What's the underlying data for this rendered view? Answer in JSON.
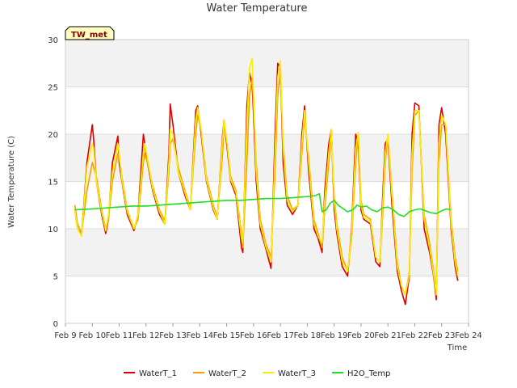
{
  "chart_data": {
    "type": "line",
    "title": "Water Temperature",
    "xlabel": "Time",
    "ylabel": "Water Temperature (C)",
    "station_label": "TW_met",
    "ylim": [
      0,
      30
    ],
    "xlim": [
      9,
      24
    ],
    "y_ticks": [
      0,
      5,
      10,
      15,
      20,
      25,
      30
    ],
    "x_ticks": [
      {
        "value": 9,
        "label": "Feb 9"
      },
      {
        "value": 10,
        "label": "Feb 10"
      },
      {
        "value": 11,
        "label": "Feb 11"
      },
      {
        "value": 12,
        "label": "Feb 12"
      },
      {
        "value": 13,
        "label": "Feb 13"
      },
      {
        "value": 14,
        "label": "Feb 14"
      },
      {
        "value": 15,
        "label": "Feb 15"
      },
      {
        "value": 16,
        "label": "Feb 16"
      },
      {
        "value": 17,
        "label": "Feb 17"
      },
      {
        "value": 18,
        "label": "Feb 18"
      },
      {
        "value": 19,
        "label": "Feb 19"
      },
      {
        "value": 20,
        "label": "Feb 20"
      },
      {
        "value": 21,
        "label": "Feb 21"
      },
      {
        "value": 22,
        "label": "Feb 22"
      },
      {
        "value": 23,
        "label": "Feb 23"
      },
      {
        "value": 24,
        "label": "Feb 24"
      }
    ],
    "legend_position": "bottom-center",
    "series": [
      {
        "name": "WaterT_1",
        "color": "#dd0000",
        "x": [
          9.35,
          9.45,
          9.6,
          9.8,
          10.0,
          10.05,
          10.15,
          10.35,
          10.5,
          10.6,
          10.75,
          10.95,
          11.0,
          11.1,
          11.3,
          11.55,
          11.7,
          11.9,
          11.95,
          12.05,
          12.25,
          12.5,
          12.7,
          12.85,
          12.9,
          13.0,
          13.2,
          13.45,
          13.65,
          13.85,
          13.92,
          14.05,
          14.25,
          14.5,
          14.65,
          14.85,
          14.9,
          15.0,
          15.15,
          15.35,
          15.55,
          15.6,
          15.75,
          15.85,
          15.95,
          16.0,
          16.1,
          16.25,
          16.45,
          16.65,
          16.8,
          16.9,
          17.0,
          17.1,
          17.25,
          17.45,
          17.65,
          17.8,
          17.9,
          18.05,
          18.25,
          18.4,
          18.55,
          18.65,
          18.8,
          18.9,
          19.0,
          19.1,
          19.3,
          19.5,
          19.65,
          19.8,
          19.9,
          20.0,
          20.1,
          20.35,
          20.55,
          20.7,
          20.8,
          20.9,
          21.0,
          21.15,
          21.35,
          21.5,
          21.65,
          21.8,
          21.9,
          22.0,
          22.15,
          22.35,
          22.55,
          22.7,
          22.8,
          22.9,
          23.0,
          23.15,
          23.35
        ],
        "y": [
          12.0,
          10.0,
          9.3,
          17.0,
          21.0,
          19.5,
          15.0,
          11.5,
          9.5,
          11.0,
          17.0,
          19.8,
          17.0,
          15.0,
          11.5,
          9.8,
          11.5,
          20.0,
          19.0,
          17.0,
          14.0,
          11.5,
          10.5,
          18.0,
          23.2,
          21.0,
          16.0,
          13.5,
          12.0,
          22.5,
          23.0,
          20.0,
          15.0,
          12.0,
          11.0,
          20.0,
          21.5,
          19.0,
          15.0,
          13.5,
          8.0,
          7.5,
          23.0,
          26.5,
          25.0,
          22.0,
          15.0,
          10.0,
          8.0,
          5.8,
          20.0,
          27.5,
          27.0,
          17.0,
          12.5,
          11.5,
          12.5,
          20.0,
          23.0,
          16.0,
          10.0,
          9.0,
          7.5,
          14.0,
          19.0,
          20.5,
          12.0,
          9.5,
          6.0,
          5.0,
          10.0,
          20.0,
          19.0,
          12.0,
          11.0,
          10.5,
          6.5,
          6.0,
          13.0,
          19.0,
          19.5,
          12.5,
          5.5,
          3.5,
          2.0,
          5.0,
          20.0,
          23.3,
          23.0,
          10.0,
          7.5,
          5.0,
          2.5,
          21.0,
          22.8,
          20.0,
          10.0
        ],
        "x_end": [
          23.5,
          23.6
        ],
        "y_end": [
          6.0,
          4.5
        ]
      },
      {
        "name": "WaterT_2",
        "color": "#f5a000",
        "x": [
          9.35,
          9.45,
          9.6,
          9.8,
          10.0,
          10.05,
          10.15,
          10.35,
          10.5,
          10.6,
          10.75,
          10.95,
          11.0,
          11.1,
          11.3,
          11.55,
          11.7,
          11.9,
          11.95,
          12.05,
          12.25,
          12.5,
          12.7,
          12.85,
          12.9,
          13.0,
          13.2,
          13.45,
          13.65,
          13.85,
          13.92,
          14.05,
          14.25,
          14.5,
          14.65,
          14.85,
          14.9,
          15.0,
          15.15,
          15.35,
          15.55,
          15.6,
          15.75,
          15.85,
          15.95,
          16.0,
          16.1,
          16.25,
          16.45,
          16.65,
          16.8,
          16.9,
          17.0,
          17.1,
          17.25,
          17.45,
          17.65,
          17.8,
          17.9,
          18.05,
          18.25,
          18.4,
          18.55,
          18.65,
          18.8,
          18.9,
          19.0,
          19.1,
          19.3,
          19.5,
          19.65,
          19.8,
          19.9,
          20.0,
          20.1,
          20.35,
          20.55,
          20.7,
          20.8,
          20.9,
          21.0,
          21.15,
          21.35,
          21.5,
          21.65,
          21.8,
          21.9,
          22.0,
          22.15,
          22.35,
          22.55,
          22.7,
          22.8,
          22.9,
          23.0,
          23.15,
          23.35
        ],
        "y": [
          12.5,
          10.5,
          9.5,
          14.0,
          17.0,
          16.5,
          15.5,
          12.0,
          10.0,
          11.0,
          15.0,
          18.0,
          17.5,
          15.5,
          12.0,
          10.0,
          11.0,
          17.0,
          18.0,
          17.0,
          14.5,
          12.0,
          10.8,
          16.0,
          19.0,
          19.5,
          16.5,
          14.0,
          12.2,
          20.0,
          22.0,
          20.5,
          15.5,
          12.5,
          11.2,
          18.0,
          21.0,
          19.5,
          15.5,
          14.0,
          9.5,
          8.0,
          17.0,
          24.0,
          26.0,
          23.0,
          17.0,
          11.0,
          8.5,
          7.0,
          16.0,
          24.0,
          26.5,
          19.0,
          13.5,
          12.0,
          12.5,
          18.0,
          22.0,
          17.5,
          11.0,
          9.5,
          8.0,
          12.0,
          17.0,
          20.0,
          13.5,
          10.5,
          7.0,
          5.5,
          9.0,
          17.0,
          20.0,
          13.0,
          11.5,
          11.0,
          7.0,
          6.5,
          11.0,
          17.0,
          20.0,
          14.0,
          6.5,
          4.0,
          3.0,
          5.5,
          16.0,
          22.0,
          22.5,
          11.5,
          8.5,
          5.5,
          3.5,
          17.0,
          21.0,
          21.0,
          11.0
        ],
        "x_end": [
          23.5,
          23.6
        ],
        "y_end": [
          7.0,
          5.5
        ]
      },
      {
        "name": "WaterT_3",
        "color": "#ffee00",
        "x": [
          9.35,
          9.45,
          9.6,
          9.8,
          10.0,
          10.05,
          10.15,
          10.35,
          10.5,
          10.6,
          10.75,
          10.95,
          11.0,
          11.1,
          11.3,
          11.55,
          11.7,
          11.9,
          11.95,
          12.05,
          12.25,
          12.5,
          12.7,
          12.85,
          12.9,
          13.0,
          13.2,
          13.45,
          13.65,
          13.85,
          13.92,
          14.05,
          14.25,
          14.5,
          14.65,
          14.85,
          14.9,
          15.0,
          15.15,
          15.35,
          15.55,
          15.6,
          15.75,
          15.85,
          15.95,
          16.0,
          16.1,
          16.25,
          16.45,
          16.65,
          16.8,
          16.9,
          17.0,
          17.1,
          17.25,
          17.45,
          17.65,
          17.8,
          17.9,
          18.05,
          18.25,
          18.4,
          18.55,
          18.65,
          18.8,
          18.9,
          19.0,
          19.1,
          19.3,
          19.5,
          19.65,
          19.8,
          19.9,
          20.0,
          20.1,
          20.35,
          20.55,
          20.7,
          20.8,
          20.9,
          21.0,
          21.15,
          21.35,
          21.5,
          21.65,
          21.8,
          21.9,
          22.0,
          22.15,
          22.35,
          22.55,
          22.7,
          22.8,
          22.9,
          23.0,
          23.15,
          23.35
        ],
        "y": [
          12.0,
          10.0,
          9.2,
          16.5,
          19.0,
          18.5,
          15.0,
          11.8,
          9.8,
          11.5,
          16.0,
          19.0,
          18.0,
          15.2,
          11.8,
          10.0,
          11.5,
          18.0,
          19.0,
          17.5,
          14.2,
          11.8,
          10.5,
          17.0,
          20.5,
          20.0,
          16.0,
          13.8,
          12.0,
          21.5,
          22.8,
          20.5,
          15.2,
          12.2,
          11.0,
          19.5,
          21.5,
          19.5,
          15.2,
          13.8,
          9.0,
          8.5,
          21.0,
          27.0,
          28.0,
          24.0,
          16.0,
          10.5,
          8.2,
          6.5,
          18.0,
          26.0,
          27.8,
          18.5,
          13.0,
          11.8,
          12.5,
          19.0,
          22.5,
          17.0,
          10.5,
          9.2,
          8.5,
          13.0,
          18.0,
          20.5,
          13.0,
          10.0,
          6.5,
          5.5,
          9.5,
          18.5,
          20.2,
          12.5,
          11.2,
          10.8,
          7.0,
          6.5,
          12.0,
          18.0,
          20.0,
          13.5,
          6.0,
          4.0,
          3.0,
          5.2,
          18.0,
          22.5,
          22.5,
          11.0,
          8.0,
          5.2,
          3.0,
          19.0,
          22.0,
          21.0,
          10.5
        ],
        "x_end": [
          23.5,
          23.6
        ],
        "y_end": [
          6.5,
          5.0
        ]
      },
      {
        "name": "H2O_Temp",
        "color": "#22dd22",
        "x": [
          9.35,
          10.0,
          10.5,
          11.0,
          11.5,
          12.0,
          12.5,
          13.0,
          13.5,
          14.0,
          14.5,
          15.0,
          15.5,
          16.0,
          16.5,
          17.0,
          17.5,
          18.0,
          18.3,
          18.45,
          18.55,
          18.7,
          18.85,
          19.0,
          19.15,
          19.3,
          19.5,
          19.7,
          19.85,
          20.0,
          20.2,
          20.4,
          20.6,
          20.8,
          21.0,
          21.2,
          21.4,
          21.6,
          21.8,
          22.0,
          22.2,
          22.4,
          22.6,
          22.8,
          23.0,
          23.2,
          23.35
        ],
        "y": [
          12.0,
          12.1,
          12.2,
          12.3,
          12.4,
          12.4,
          12.5,
          12.6,
          12.7,
          12.8,
          12.9,
          13.0,
          13.0,
          13.1,
          13.2,
          13.2,
          13.3,
          13.4,
          13.5,
          13.7,
          11.8,
          12.0,
          12.7,
          13.0,
          12.5,
          12.2,
          11.8,
          12.0,
          12.5,
          12.3,
          12.4,
          12.0,
          11.8,
          12.2,
          12.3,
          12.0,
          11.5,
          11.3,
          11.8,
          12.0,
          12.1,
          11.9,
          11.7,
          11.6,
          11.9,
          12.1,
          12.0
        ],
        "x_end": [],
        "y_end": []
      }
    ]
  }
}
